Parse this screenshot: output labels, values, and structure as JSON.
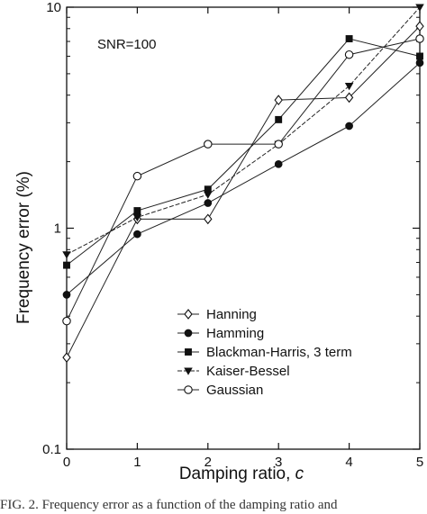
{
  "chart_data": {
    "type": "line",
    "title": "",
    "annotation": "SNR=100",
    "xlabel": "Damping ratio, ",
    "xlabel_var": "c",
    "ylabel": "Frequency error (%)",
    "xlim": [
      0,
      5
    ],
    "ylim": [
      0.1,
      10
    ],
    "yscale": "log",
    "xticks": [
      0,
      1,
      2,
      3,
      4,
      5
    ],
    "xtick_labels": [
      "0",
      "1",
      "2",
      "3",
      "4",
      "5"
    ],
    "yticks": [
      0.1,
      1,
      10
    ],
    "ytick_labels": [
      "0.1",
      "1",
      "10"
    ],
    "grid": false,
    "legend_position": "lower-center",
    "x": [
      0,
      1,
      2,
      3,
      4,
      5
    ],
    "series": [
      {
        "name": "Hanning",
        "marker": "open-diamond",
        "values": [
          0.26,
          1.1,
          1.1,
          3.8,
          3.9,
          8.2
        ]
      },
      {
        "name": "Hamming",
        "marker": "filled-circle",
        "values": [
          0.5,
          0.94,
          1.3,
          1.95,
          2.9,
          5.6
        ]
      },
      {
        "name": "Blackman-Harris, 3 term",
        "marker": "filled-square",
        "values": [
          0.68,
          1.2,
          1.5,
          3.1,
          7.2,
          6.0
        ]
      },
      {
        "name": "Kaiser-Bessel",
        "marker": "filled-triangle-down",
        "values": [
          0.76,
          1.12,
          1.42,
          2.4,
          4.4,
          10.2
        ]
      },
      {
        "name": "Gaussian",
        "marker": "open-circle",
        "values": [
          0.38,
          1.72,
          2.4,
          2.4,
          6.1,
          7.2
        ]
      }
    ]
  },
  "caption": "FIG. 2.  Frequency error as a function of the damping ratio and"
}
